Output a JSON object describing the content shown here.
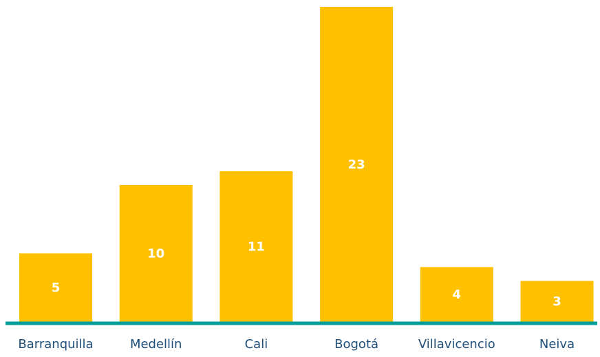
{
  "chart_data": {
    "type": "bar",
    "title": "",
    "xlabel": "",
    "ylabel": "",
    "categories": [
      "Barranquilla",
      "Medellín",
      "Cali",
      "Bogotá",
      "Villavicencio",
      "Neiva"
    ],
    "values": [
      5,
      10,
      11,
      23,
      4,
      3
    ],
    "value_labels": [
      "5",
      "10",
      "11",
      "23",
      "4",
      "3"
    ],
    "ylim": [
      0,
      23
    ],
    "grid": false,
    "legend": "none",
    "colors": {
      "bar": "#FFC000",
      "bar_label": "#FFFFFF",
      "axis": "#009E9A",
      "category_label": "#1F4E79"
    }
  }
}
